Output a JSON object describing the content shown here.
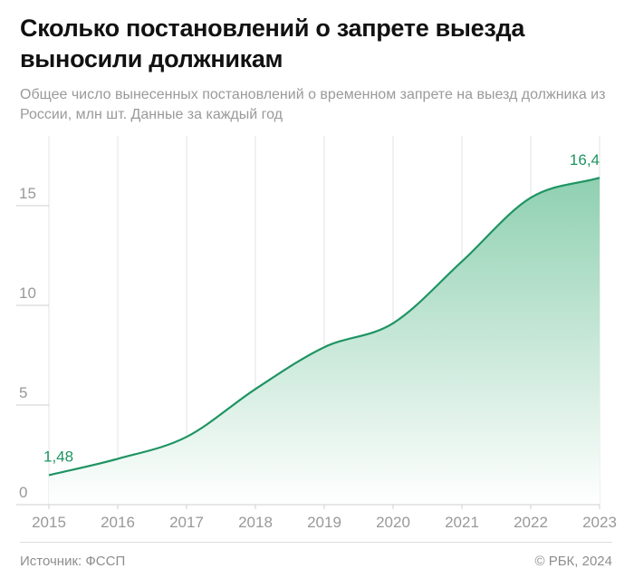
{
  "header": {
    "title": "Сколько постановлений о запрете выезда выносили должникам",
    "subtitle": "Общее число вынесенных постановлений о временном запрете на выезд должника из России, млн шт. Данные за каждый год"
  },
  "footer": {
    "source": "Источник: ФССП",
    "copyright": "© РБК, 2024"
  },
  "colors": {
    "line": "#1f9463",
    "fill_top": "#8fd0b1",
    "fill_bottom": "#ffffff",
    "label": "#1f9463",
    "grid": "#e3e3e3",
    "tick": "#999999"
  },
  "chart_data": {
    "type": "area",
    "x": [
      "2015",
      "2016",
      "2017",
      "2018",
      "2019",
      "2020",
      "2021",
      "2022",
      "2023"
    ],
    "series": [
      {
        "values": [
          1.48,
          2.3,
          3.4,
          5.8,
          7.9,
          9.1,
          12.2,
          15.4,
          16.4
        ]
      }
    ],
    "data_labels": [
      {
        "index": 0,
        "text": "1,48"
      },
      {
        "index": 8,
        "text": "16,4"
      }
    ],
    "ylim": [
      0,
      18.5
    ],
    "yticks": [
      0,
      5,
      10,
      15
    ],
    "ytick_labels": [
      "0",
      "5",
      "10",
      "15"
    ],
    "grid": "vertical",
    "xlabel": "",
    "ylabel": ""
  }
}
